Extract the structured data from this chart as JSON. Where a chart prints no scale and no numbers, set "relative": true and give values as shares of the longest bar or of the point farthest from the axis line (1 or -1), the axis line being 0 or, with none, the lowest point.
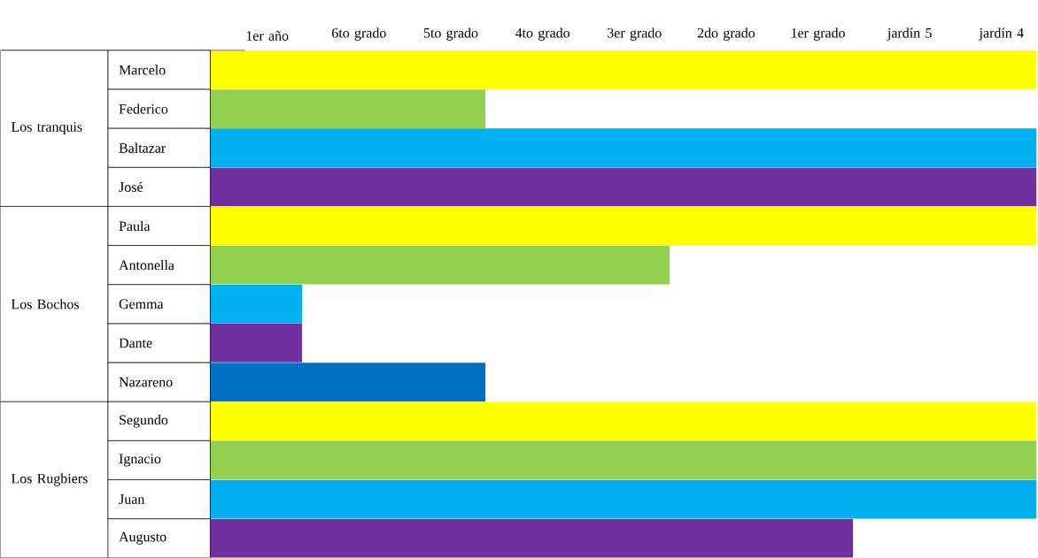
{
  "chart_data": {
    "type": "bar",
    "orientation": "horizontal",
    "relative": true,
    "categories": [
      "Marcelo",
      "Federico",
      "Baltazar",
      "José",
      "Paula",
      "Antonella",
      "Gemma",
      "Dante",
      "Nazareno",
      "Segundo",
      "Ignacio",
      "Juan",
      "Augusto"
    ],
    "values": [
      1,
      0.333,
      1,
      1,
      1,
      0.556,
      0.111,
      0.111,
      0.333,
      1,
      1,
      1,
      0.778
    ],
    "colors": [
      "#ffff00",
      "#92d050",
      "#00b0f0",
      "#7030a0",
      "#ffff00",
      "#92d050",
      "#00b0f0",
      "#7030a0",
      "#0070c0",
      "#ffff00",
      "#92d050",
      "#00b0f0",
      "#7030a0"
    ],
    "annotations": [
      "1er año",
      "6to grado",
      "5to grado",
      "4to grado",
      "3er grado",
      "2do grado",
      "1er grado",
      "jardín 5",
      "jardín 4",
      "Los tranquis",
      "Los Bochos",
      "Los Rugbiers"
    ]
  }
}
